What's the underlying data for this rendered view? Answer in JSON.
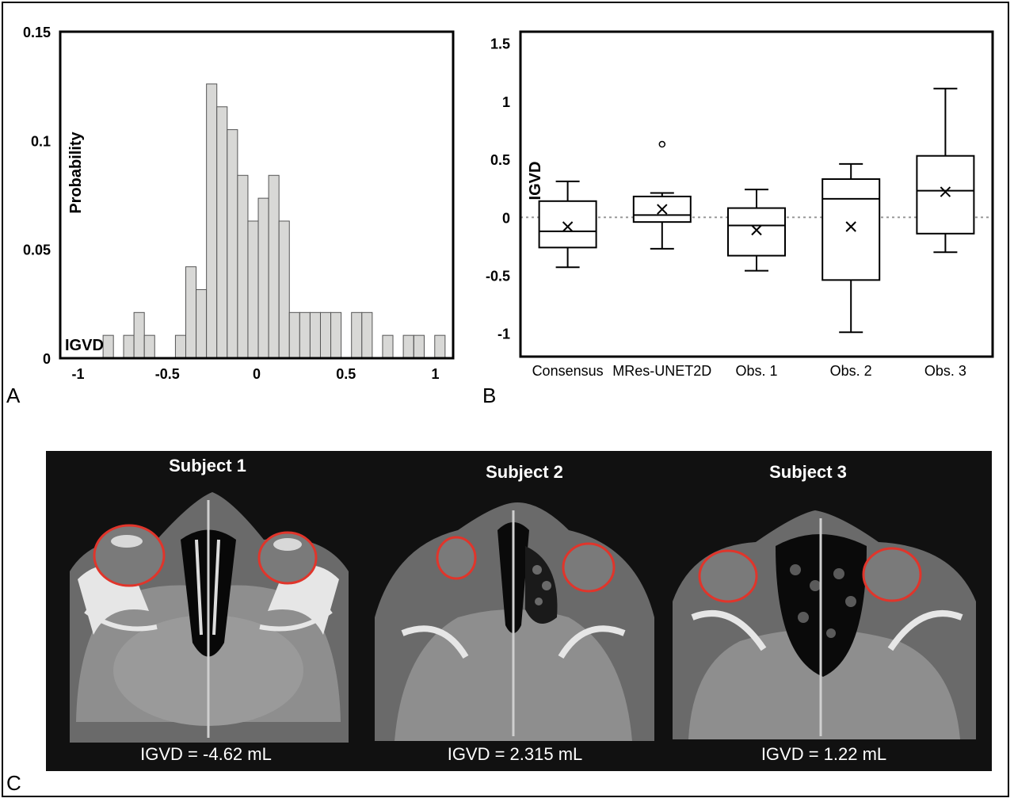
{
  "panel_labels": {
    "a": "A",
    "b": "B",
    "c": "C"
  },
  "chart_data": [
    {
      "type": "bar",
      "subtype": "histogram",
      "ylabel": "Probability",
      "xlabel": "IGVD",
      "xlim": [
        -1.1,
        1.1
      ],
      "ylim": [
        0,
        0.15
      ],
      "xticks": [
        "-1",
        "-0.5",
        "0",
        "0.5",
        "1"
      ],
      "xtick_values": [
        -1,
        -0.5,
        0,
        0.5,
        1
      ],
      "yticks": [
        "0",
        "0.05",
        "0.1",
        "0.15"
      ],
      "ytick_values": [
        0,
        0.05,
        0.1,
        0.15
      ],
      "bin_width": 0.058,
      "bins": [
        {
          "left": -0.86,
          "value": 0.0105
        },
        {
          "left": -0.745,
          "value": 0.0105
        },
        {
          "left": -0.687,
          "value": 0.021
        },
        {
          "left": -0.629,
          "value": 0.0105
        },
        {
          "left": -0.455,
          "value": 0.0105
        },
        {
          "left": -0.397,
          "value": 0.042
        },
        {
          "left": -0.339,
          "value": 0.0315
        },
        {
          "left": -0.281,
          "value": 0.126
        },
        {
          "left": -0.223,
          "value": 0.1155
        },
        {
          "left": -0.165,
          "value": 0.105
        },
        {
          "left": -0.107,
          "value": 0.084
        },
        {
          "left": -0.049,
          "value": 0.063
        },
        {
          "left": 0.009,
          "value": 0.0735
        },
        {
          "left": 0.067,
          "value": 0.084
        },
        {
          "left": 0.125,
          "value": 0.063
        },
        {
          "left": 0.183,
          "value": 0.021
        },
        {
          "left": 0.241,
          "value": 0.021
        },
        {
          "left": 0.299,
          "value": 0.021
        },
        {
          "left": 0.357,
          "value": 0.021
        },
        {
          "left": 0.415,
          "value": 0.021
        },
        {
          "left": 0.531,
          "value": 0.021
        },
        {
          "left": 0.589,
          "value": 0.021
        },
        {
          "left": 0.705,
          "value": 0.0105
        },
        {
          "left": 0.821,
          "value": 0.0105
        },
        {
          "left": 0.88,
          "value": 0.0105
        },
        {
          "left": 0.997,
          "value": 0.0105
        }
      ],
      "colors": {
        "bar_fill": "#d8d8d6",
        "bar_stroke": "#555555"
      }
    },
    {
      "type": "box",
      "ylabel": "IGVD",
      "ylim": [
        -1.2,
        1.6
      ],
      "yticks": [
        "1.5",
        "1",
        "0.5",
        "0",
        "-0.5",
        "-1"
      ],
      "ytick_values": [
        1.5,
        1,
        0.5,
        0,
        -0.5,
        -1
      ],
      "categories": [
        "Consensus",
        "MRes-UNET2D",
        "Obs. 1",
        "Obs. 2",
        "Obs. 3"
      ],
      "boxes": [
        {
          "min": -0.43,
          "q1": -0.26,
          "median": -0.12,
          "q3": 0.14,
          "max": 0.31,
          "mean": -0.08,
          "outliers": []
        },
        {
          "min": -0.27,
          "q1": -0.04,
          "median": 0.02,
          "q3": 0.18,
          "max": 0.21,
          "mean": 0.07,
          "outliers": [
            0.63
          ]
        },
        {
          "min": -0.46,
          "q1": -0.33,
          "median": -0.07,
          "q3": 0.08,
          "max": 0.24,
          "mean": -0.11,
          "outliers": []
        },
        {
          "min": -0.99,
          "q1": -0.54,
          "median": 0.16,
          "q3": 0.33,
          "max": 0.46,
          "mean": -0.08,
          "outliers": []
        },
        {
          "min": -0.3,
          "q1": -0.14,
          "median": 0.23,
          "q3": 0.53,
          "max": 1.11,
          "mean": 0.22,
          "outliers": []
        }
      ],
      "reference_line": 0,
      "colors": {
        "reference_line": "#9a9a9a"
      }
    }
  ],
  "scans": [
    {
      "title": "Subject 1",
      "caption": "IGVD = -4.62 mL"
    },
    {
      "title": "Subject 2",
      "caption": "IGVD = 2.315 mL"
    },
    {
      "title": "Subject 3",
      "caption": "IGVD = 1.22 mL"
    }
  ],
  "colors": {
    "segmentation_outline": "#e0352b",
    "scan_background": "#111111"
  }
}
